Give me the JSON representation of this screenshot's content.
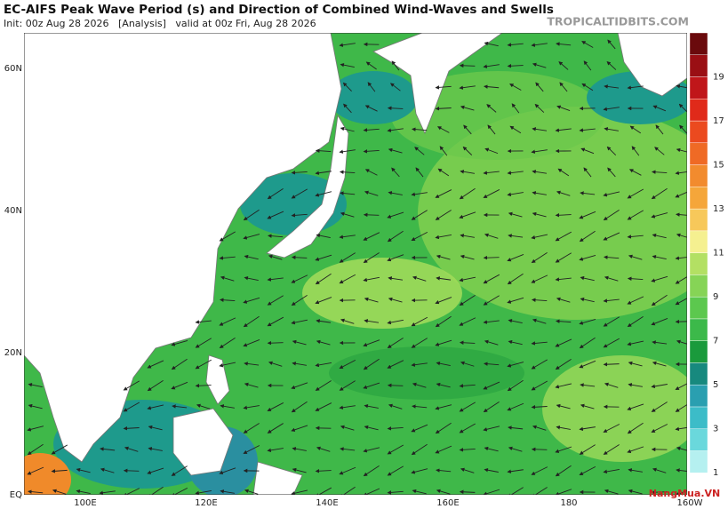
{
  "header": {
    "title": "EC-AIFS Peak Wave Period (s) and Direction of Combined Wind-Waves and Swells",
    "subtitle": "Init: 00z Aug 28 2026   [Analysis]   valid at 00z Fri, Aug 28 2026",
    "source": "TROPICALTIDBITS.COM"
  },
  "map": {
    "lat_labels": [
      "60N",
      "40N",
      "20N",
      "EQ"
    ],
    "lon_labels": [
      "100E",
      "120E",
      "140E",
      "160E",
      "180",
      "160W"
    ]
  },
  "colorbar": {
    "labels": [
      "1",
      "3",
      "5",
      "7",
      "9",
      "11",
      "13",
      "15",
      "17",
      "19"
    ]
  },
  "watermark": "NangMua.VN"
}
